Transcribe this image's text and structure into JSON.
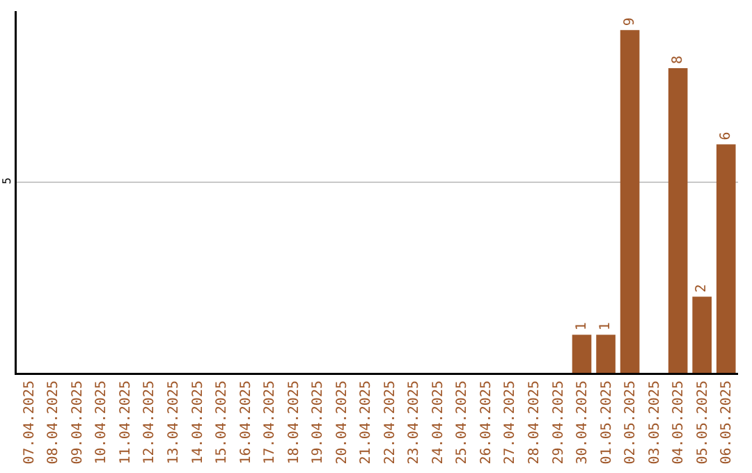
{
  "chart_data": {
    "type": "bar",
    "categories": [
      "07.04.2025",
      "08.04.2025",
      "09.04.2025",
      "10.04.2025",
      "11.04.2025",
      "12.04.2025",
      "13.04.2025",
      "14.04.2025",
      "15.04.2025",
      "16.04.2025",
      "17.04.2025",
      "18.04.2025",
      "19.04.2025",
      "20.04.2025",
      "21.04.2025",
      "22.04.2025",
      "23.04.2025",
      "24.04.2025",
      "25.04.2025",
      "26.04.2025",
      "27.04.2025",
      "28.04.2025",
      "29.04.2025",
      "30.04.2025",
      "01.05.2025",
      "02.05.2025",
      "03.05.2025",
      "04.05.2025",
      "05.05.2025",
      "06.05.2025"
    ],
    "values": [
      null,
      null,
      null,
      null,
      null,
      null,
      null,
      null,
      null,
      null,
      null,
      null,
      null,
      null,
      null,
      null,
      null,
      null,
      null,
      null,
      null,
      null,
      null,
      1,
      1,
      9,
      null,
      8,
      2,
      6
    ],
    "color": "#a0582a",
    "ylim": [
      0,
      9.5
    ],
    "yticks": [
      5
    ],
    "grid": "y",
    "data_labels": true
  }
}
